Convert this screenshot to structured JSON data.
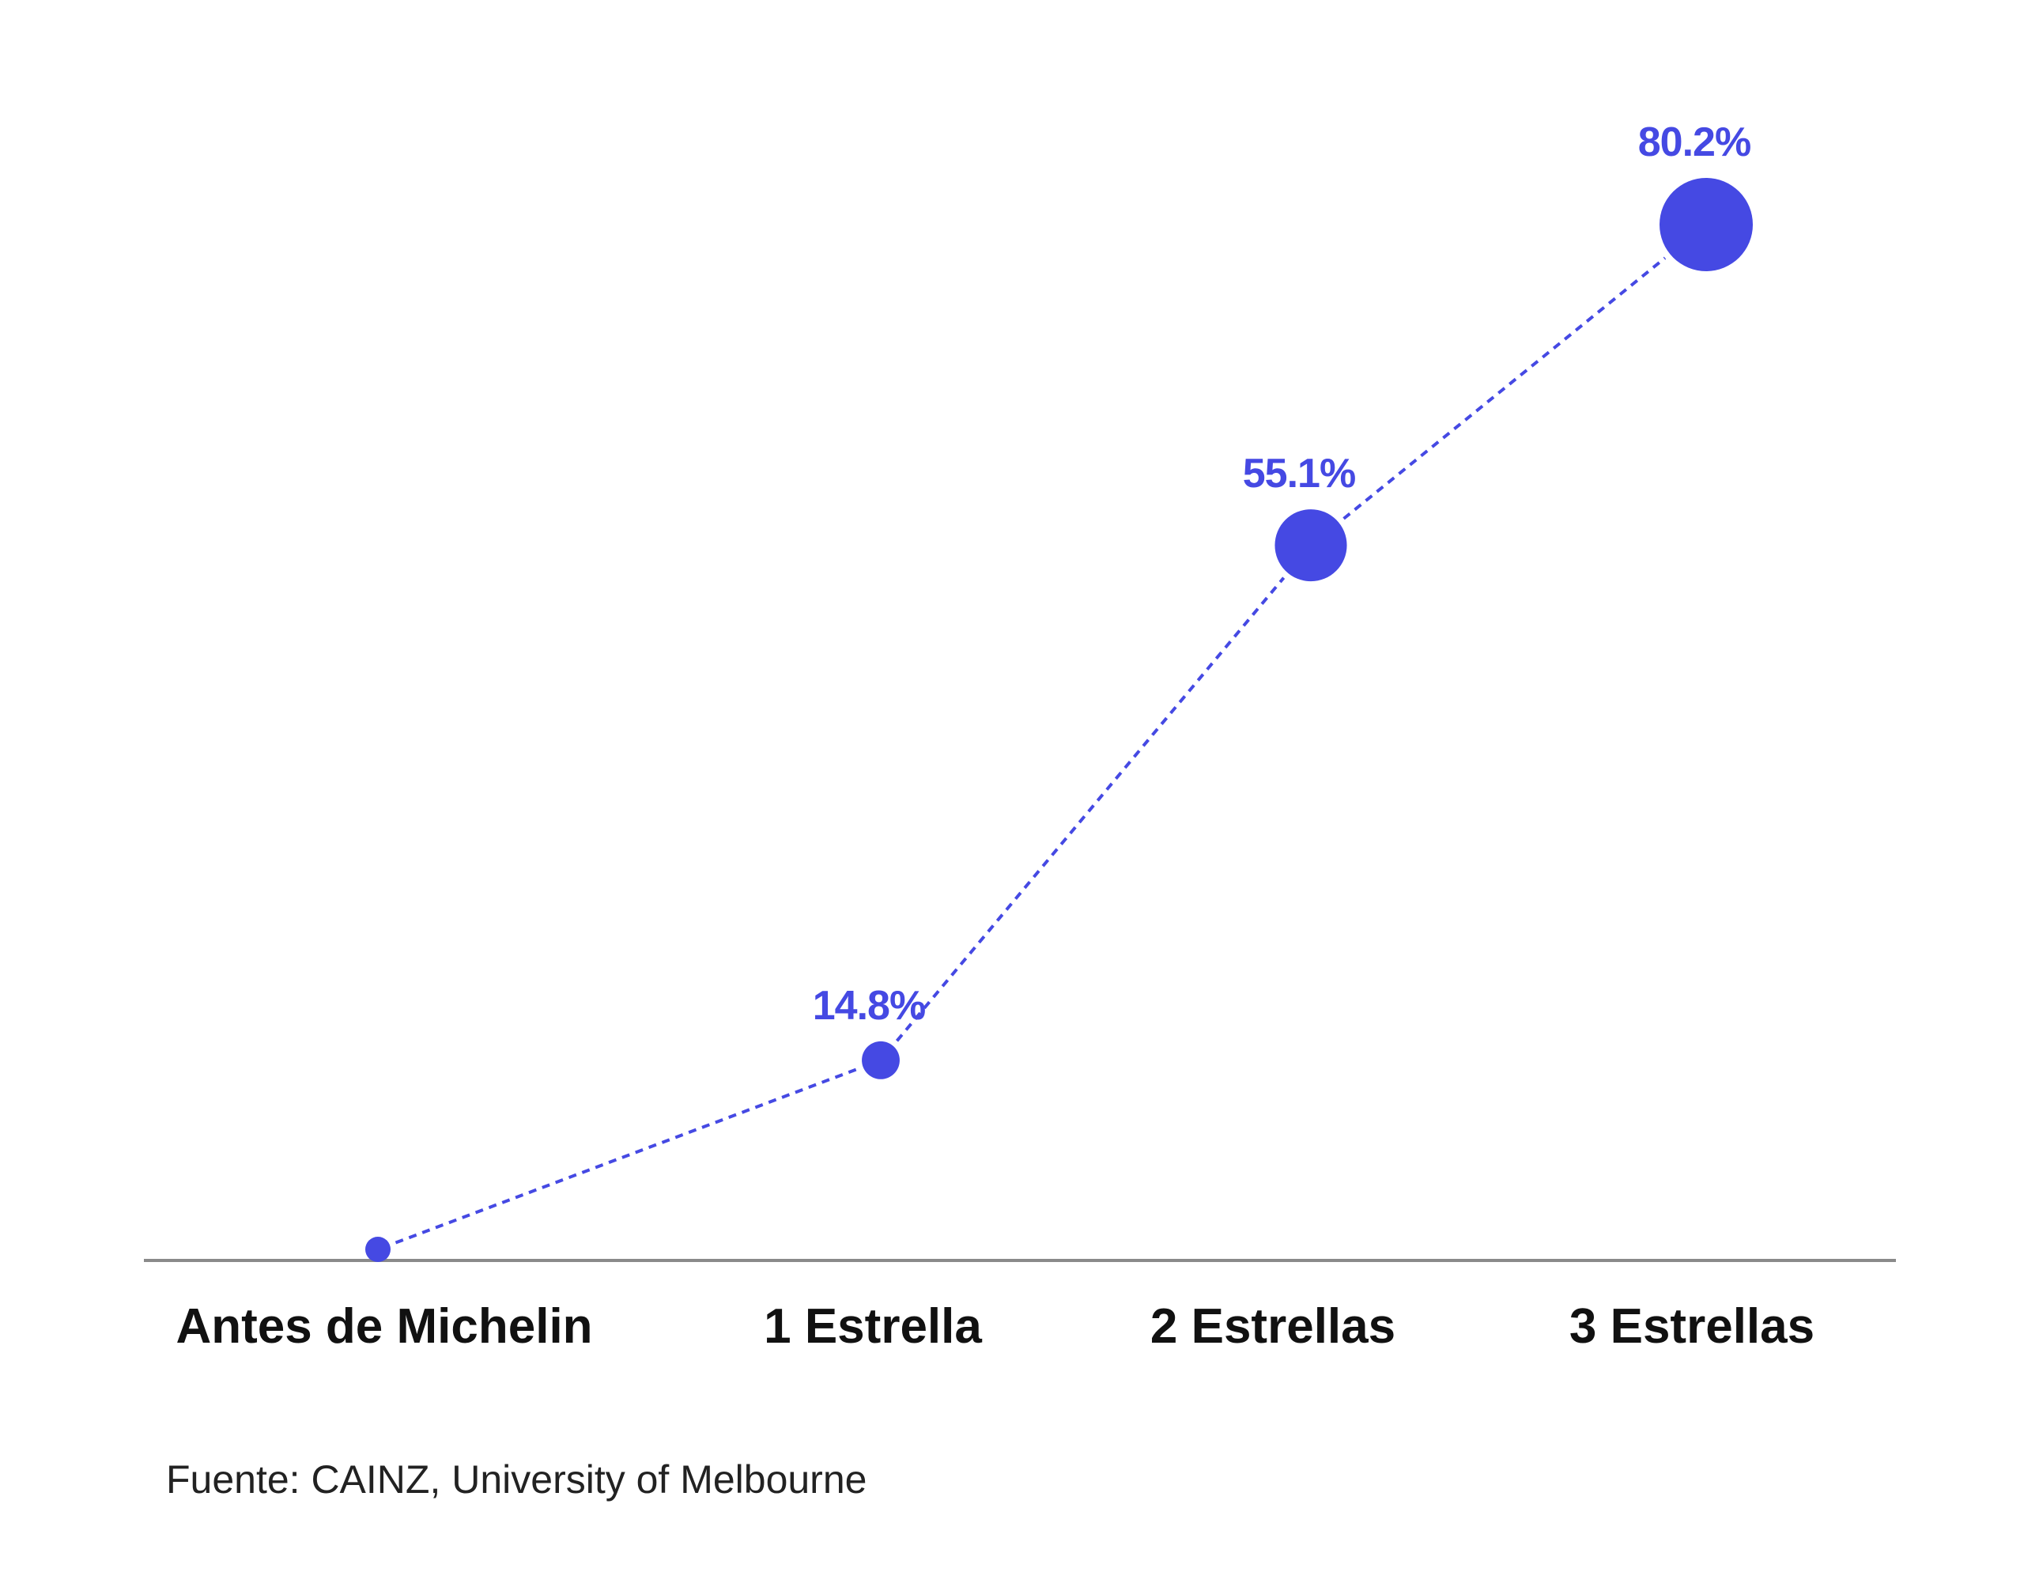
{
  "chart_data": {
    "type": "line",
    "categories": [
      "Antes de Michelin",
      "1 Estrella",
      "2 Estrellas",
      "3 Estrellas"
    ],
    "values": [
      0,
      14.8,
      55.1,
      80.2
    ],
    "value_labels": [
      "",
      "14.8%",
      "55.1%",
      "80.2%"
    ],
    "title": "",
    "xlabel": "",
    "ylabel": "",
    "ylim": [
      0,
      80.2
    ],
    "grid": false,
    "line_style": "dotted",
    "marker_size_scales_with_value": true,
    "colors": {
      "series": "#4549E3",
      "axis": "#8A8A8A",
      "category_text": "#111111"
    }
  },
  "footer": {
    "source": "Fuente: CAINZ, University of Melbourne"
  }
}
